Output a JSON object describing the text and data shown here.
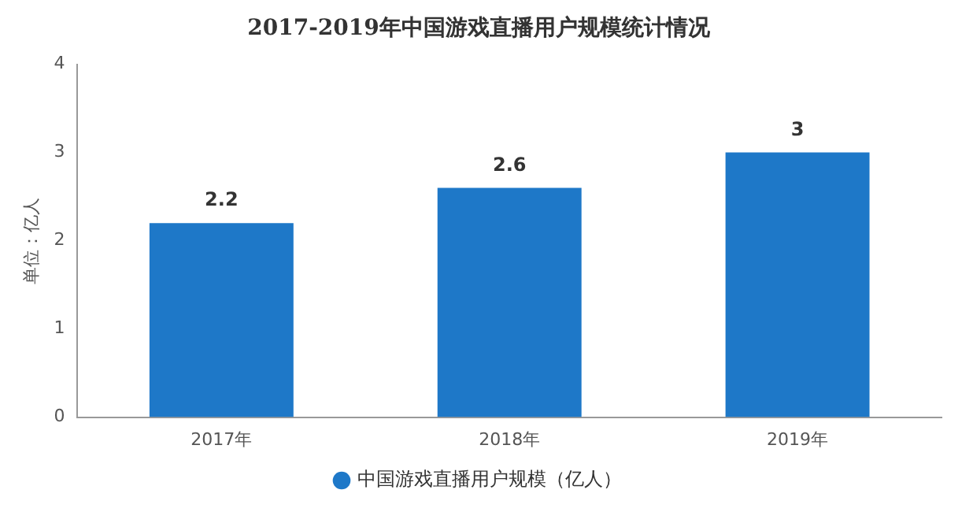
{
  "chart_data": {
    "type": "bar",
    "title": "2017-2019年中国游戏直播用户规模统计情况",
    "ylabel": "单位：亿人",
    "categories": [
      "2017年",
      "2018年",
      "2019年"
    ],
    "series": [
      {
        "name": "中国游戏直播用户规模（亿人）",
        "color": "#1e78c8",
        "values": [
          2.2,
          2.6,
          3
        ]
      }
    ],
    "ylim": [
      0,
      4
    ],
    "yticks": [
      0,
      1,
      2,
      3,
      4
    ],
    "grid": false,
    "legend": "bottom",
    "data_labels": true
  }
}
